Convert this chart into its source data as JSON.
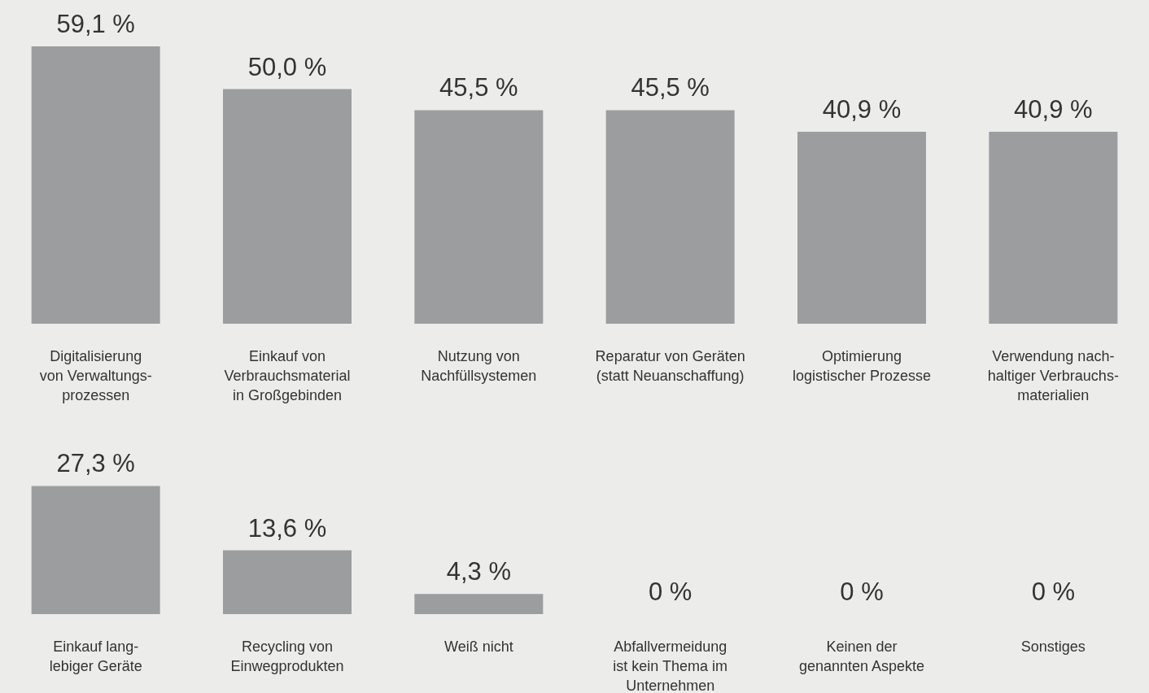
{
  "chart_data": [
    {
      "type": "bar",
      "categories": [
        "Digitalisierung\nvon Verwaltungs-\nprozessen",
        "Einkauf von\nVerbrauchsmaterial\nin Großgebinden",
        "Nutzung von\nNachfüllsystemen",
        "Reparatur von Geräten\n(statt Neuanschaffung)",
        "Optimierung\nlogistischer Prozesse",
        "Verwendung nach-\nhaltiger Verbrauchs-\nmaterialien"
      ],
      "values": [
        59.1,
        50.0,
        45.5,
        45.5,
        40.9,
        40.9
      ],
      "value_labels": [
        "59,1 %",
        "50,0 %",
        "45,5 %",
        "45,5 %",
        "40,9 %",
        "40,9 %"
      ],
      "color": "#9c9d9f"
    },
    {
      "type": "bar",
      "categories": [
        "Einkauf lang-\nlebiger Geräte",
        "Recycling von\nEinwegprodukten",
        "Weiß nicht",
        "Abfallvermeidung\nist kein Thema im\nUnternehmen",
        "Keinen der\ngenannten Aspekte",
        "Sonstiges"
      ],
      "values": [
        27.3,
        13.6,
        4.3,
        0,
        0,
        0
      ],
      "value_labels": [
        "27,3 %",
        "13,6 %",
        "4,3 %",
        "0 %",
        "0 %",
        "0 %"
      ],
      "color": "#9c9d9f"
    }
  ]
}
